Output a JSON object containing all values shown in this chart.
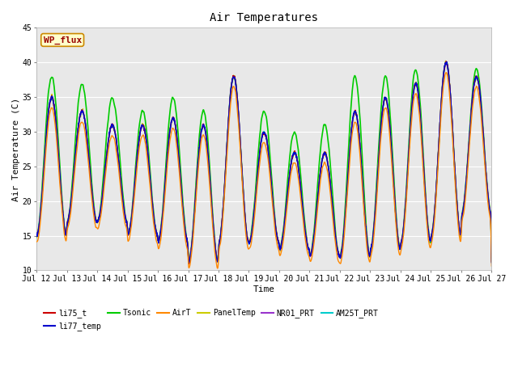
{
  "title": "Air Temperatures",
  "xlabel": "Time",
  "ylabel": "Air Temperature (C)",
  "ylim": [
    10,
    45
  ],
  "yticks": [
    10,
    15,
    20,
    25,
    30,
    35,
    40,
    45
  ],
  "xtick_labels": [
    "Jul 12",
    "Jul 13",
    "Jul 14",
    "Jul 15",
    "Jul 16",
    "Jul 17",
    "Jul 18",
    "Jul 19",
    "Jul 20",
    "Jul 21",
    "Jul 22",
    "Jul 23",
    "Jul 24",
    "Jul 25",
    "Jul 26",
    "Jul 27"
  ],
  "series": {
    "li75_t": {
      "color": "#cc0000",
      "lw": 1.0,
      "zorder": 5
    },
    "li77_temp": {
      "color": "#0000cc",
      "lw": 1.0,
      "zorder": 5
    },
    "Tsonic": {
      "color": "#00cc00",
      "lw": 1.2,
      "zorder": 4
    },
    "AirT": {
      "color": "#ff8800",
      "lw": 1.0,
      "zorder": 5
    },
    "PanelTemp": {
      "color": "#cccc00",
      "lw": 1.0,
      "zorder": 5
    },
    "NR01_PRT": {
      "color": "#9933cc",
      "lw": 1.0,
      "zorder": 5
    },
    "AM25T_PRT": {
      "color": "#00cccc",
      "lw": 1.0,
      "zorder": 5
    }
  },
  "legend_label_order": [
    "li75_t",
    "li77_temp",
    "Tsonic",
    "AirT",
    "PanelTemp",
    "NR01_PRT",
    "AM25T_PRT"
  ],
  "wp_flux_box": {
    "text": "WP_flux",
    "facecolor": "#ffffcc",
    "edgecolor": "#cc8800",
    "textcolor": "#990000",
    "fontsize": 8,
    "fontweight": "bold"
  },
  "background_color": "#e8e8e8",
  "plot_bg": "#e8e8e8",
  "title_fontsize": 10,
  "axis_label_fontsize": 8,
  "tick_fontsize": 7,
  "legend_fontsize": 7,
  "day_mins": [
    15,
    17,
    17,
    15,
    14,
    11,
    14,
    14,
    13,
    12,
    12,
    13,
    14,
    15,
    18
  ],
  "day_maxs": [
    35,
    33,
    31,
    31,
    32,
    31,
    38,
    30,
    27,
    27,
    33,
    35,
    37,
    40,
    38
  ],
  "tsonic_extra_max": [
    38,
    37,
    35,
    33,
    35,
    33,
    38,
    33,
    30,
    31,
    38,
    38,
    39,
    40,
    39
  ]
}
